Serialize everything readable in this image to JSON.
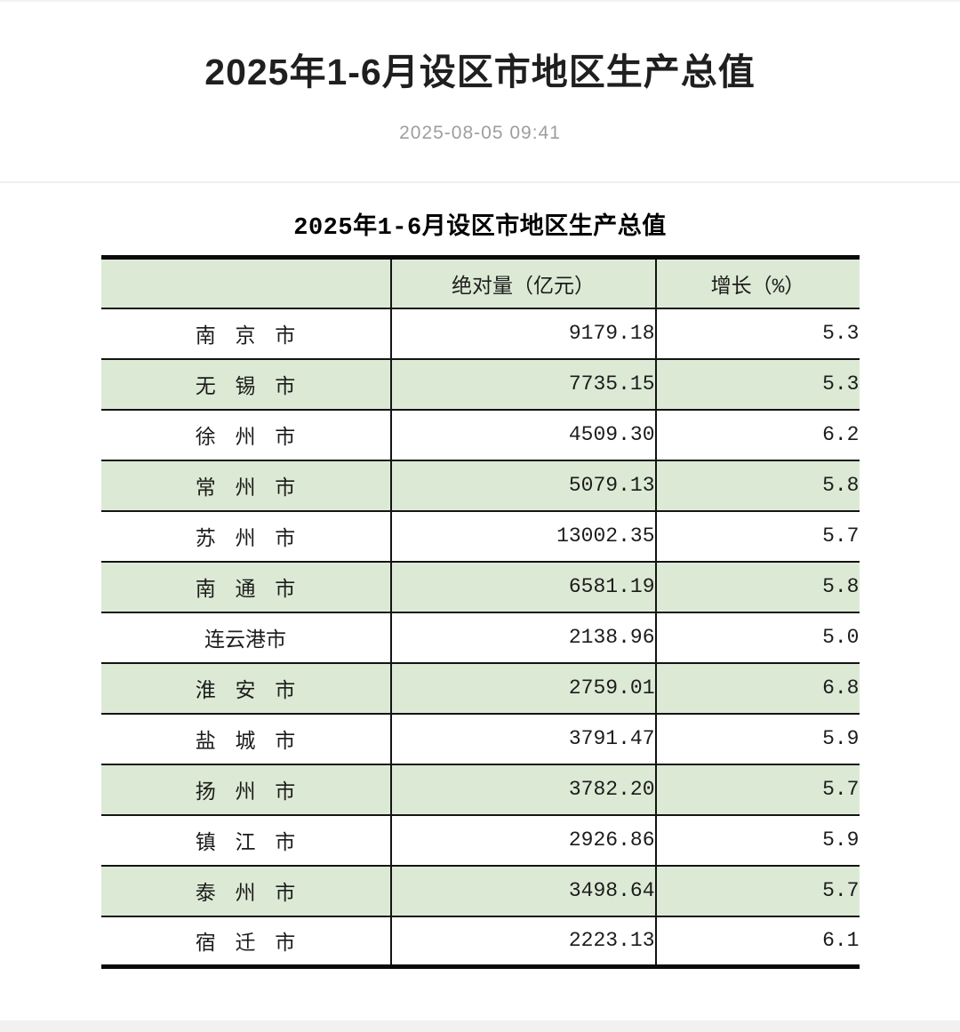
{
  "page": {
    "title": "2025年1-6月设区市地区生产总值",
    "published": "2025-08-05 09:41"
  },
  "table": {
    "caption": "2025年1-6月设区市地区生产总值",
    "columns": [
      "",
      "绝对量（亿元）",
      "增长（%）"
    ],
    "rows": [
      {
        "city": "南 京 市",
        "value": "9179.18",
        "growth": "5.3"
      },
      {
        "city": "无 锡 市",
        "value": "7735.15",
        "growth": "5.3"
      },
      {
        "city": "徐 州 市",
        "value": "4509.30",
        "growth": "6.2"
      },
      {
        "city": "常 州 市",
        "value": "5079.13",
        "growth": "5.8"
      },
      {
        "city": "苏 州 市",
        "value": "13002.35",
        "growth": "5.7"
      },
      {
        "city": "南 通 市",
        "value": "6581.19",
        "growth": "5.8"
      },
      {
        "city": "连云港市",
        "value": "2138.96",
        "growth": "5.0"
      },
      {
        "city": "淮 安 市",
        "value": "2759.01",
        "growth": "6.8"
      },
      {
        "city": "盐 城 市",
        "value": "3791.47",
        "growth": "5.9"
      },
      {
        "city": "扬 州 市",
        "value": "3782.20",
        "growth": "5.7"
      },
      {
        "city": "镇 江 市",
        "value": "2926.86",
        "growth": "5.9"
      },
      {
        "city": "泰 州 市",
        "value": "3498.64",
        "growth": "5.7"
      },
      {
        "city": "宿 迁 市",
        "value": "2223.13",
        "growth": "6.1"
      }
    ]
  },
  "colors": {
    "row_stripe": "#dcead5",
    "table_rule": "#141414",
    "date_text": "#9e9e9e"
  }
}
